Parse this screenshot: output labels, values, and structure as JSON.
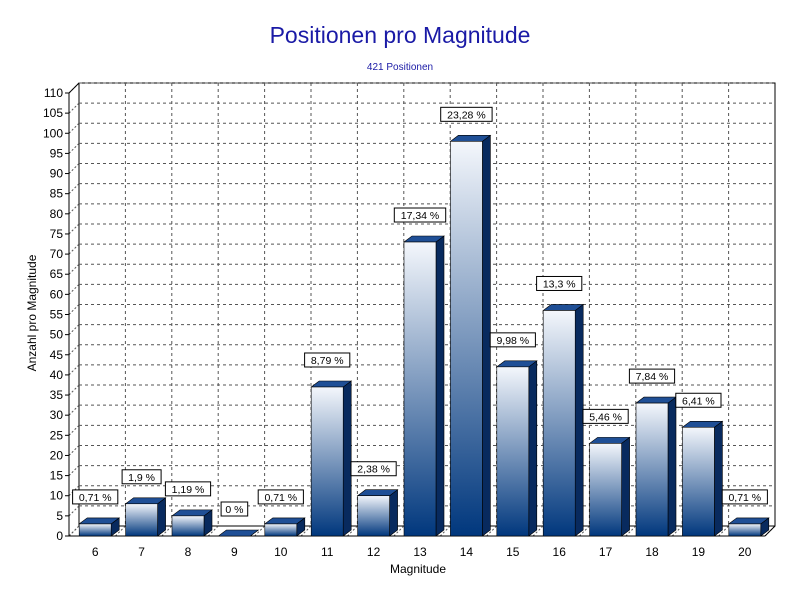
{
  "chart_data": {
    "type": "bar",
    "title": "Positionen pro Magnitude",
    "subtitle": "421 Positionen",
    "xlabel": "Magnitude",
    "ylabel": "Anzahl pro Magnitude",
    "ylim": [
      0,
      110
    ],
    "ytick_step": 5,
    "grid": true,
    "legend": "none",
    "categories": [
      "6",
      "7",
      "8",
      "9",
      "10",
      "11",
      "12",
      "13",
      "14",
      "15",
      "16",
      "17",
      "18",
      "19",
      "20"
    ],
    "values": [
      3,
      8,
      5,
      0,
      3,
      37,
      10,
      73,
      98,
      42,
      56,
      23,
      33,
      27,
      3
    ],
    "data_labels": [
      "0,71 %",
      "1,9 %",
      "1,19 %",
      "0 %",
      "0,71 %",
      "8,79 %",
      "2,38 %",
      "17,34 %",
      "23,28 %",
      "9,98 %",
      "13,3 %",
      "5,46 %",
      "7,84 %",
      "6,41 %",
      "0,71 %"
    ],
    "colors": {
      "bar_top": "#f4f7fc",
      "bar_bottom": "#00377d",
      "bar_side": "#082a5e",
      "bar_cap": "#1f4f96",
      "title": "#1a1aa6"
    }
  }
}
